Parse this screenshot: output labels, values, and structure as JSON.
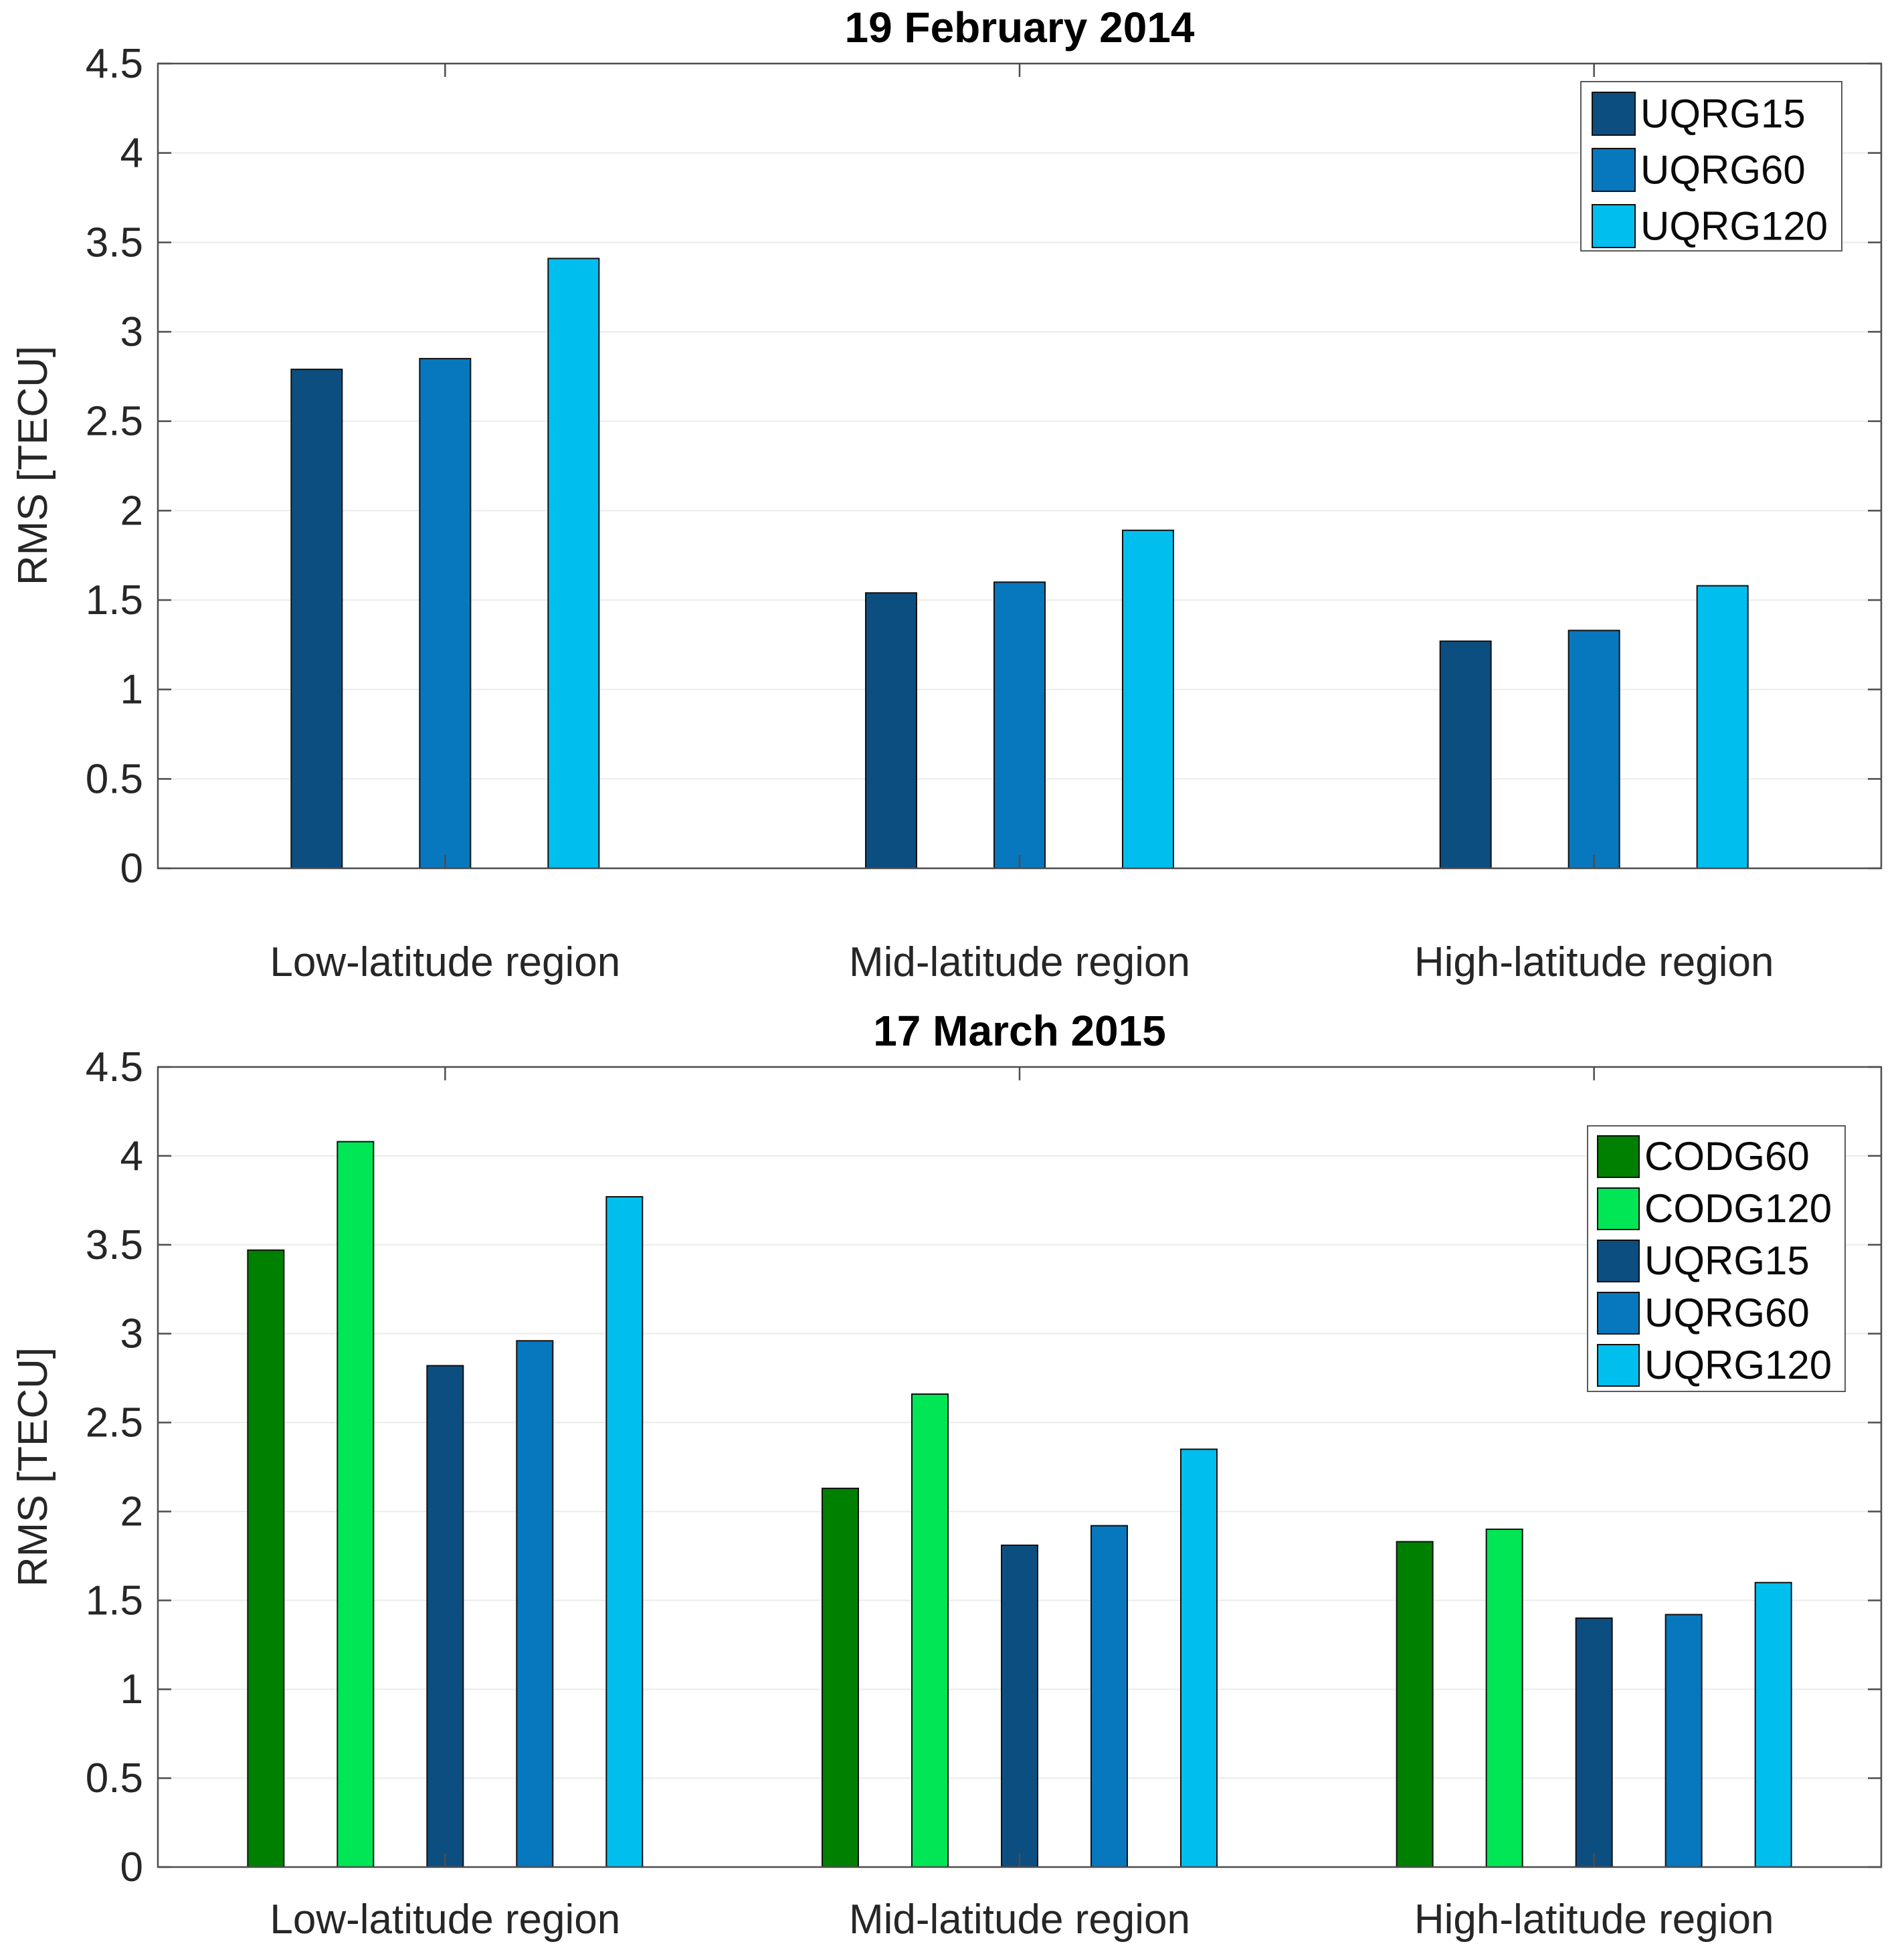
{
  "figure": {
    "background": "#ffffff",
    "axis_color": "#4d4d4d",
    "grid_color": "#ebebeb",
    "bar_edge_color": "#101010",
    "text_color": "#262626"
  },
  "chart_data": [
    {
      "type": "bar",
      "title": "19 February 2014",
      "ylabel": "RMS [TECU]",
      "xlabel": "",
      "categories": [
        "Low-latitude region",
        "Mid-latitude region",
        "High-latitude region"
      ],
      "series": [
        {
          "name": "UQRG15",
          "color": "#0d4e81",
          "values": [
            2.79,
            1.54,
            1.27
          ]
        },
        {
          "name": "UQRG60",
          "color": "#0778be",
          "values": [
            2.85,
            1.6,
            1.33
          ]
        },
        {
          "name": "UQRG120",
          "color": "#00bfef",
          "values": [
            3.41,
            1.89,
            1.58
          ]
        }
      ],
      "ylim": [
        0,
        4.5
      ],
      "yticks": [
        0,
        0.5,
        1,
        1.5,
        2,
        2.5,
        3,
        3.5,
        4,
        4.5
      ],
      "grid": true,
      "legend_position": "top-right",
      "legend_entries": [
        "UQRG15",
        "UQRG60",
        "UQRG120"
      ]
    },
    {
      "type": "bar",
      "title": "17 March 2015",
      "ylabel": "RMS [TECU]",
      "xlabel": "",
      "categories": [
        "Low-latitude region",
        "Mid-latitude region",
        "High-latitude region"
      ],
      "series": [
        {
          "name": "CODG60",
          "color": "#008000",
          "values": [
            3.47,
            2.13,
            1.83
          ]
        },
        {
          "name": "CODG120",
          "color": "#00e655",
          "values": [
            4.08,
            2.66,
            1.9
          ]
        },
        {
          "name": "UQRG15",
          "color": "#0d4e81",
          "values": [
            2.82,
            1.81,
            1.4
          ]
        },
        {
          "name": "UQRG60",
          "color": "#0778be",
          "values": [
            2.96,
            1.92,
            1.42
          ]
        },
        {
          "name": "UQRG120",
          "color": "#00bfef",
          "values": [
            3.77,
            2.35,
            1.6
          ]
        }
      ],
      "ylim": [
        0,
        4.5
      ],
      "yticks": [
        0,
        0.5,
        1,
        1.5,
        2,
        2.5,
        3,
        3.5,
        4,
        4.5
      ],
      "grid": true,
      "legend_position": "top-right",
      "legend_entries": [
        "CODG60",
        "CODG120",
        "UQRG15",
        "UQRG60",
        "UQRG120"
      ]
    }
  ]
}
